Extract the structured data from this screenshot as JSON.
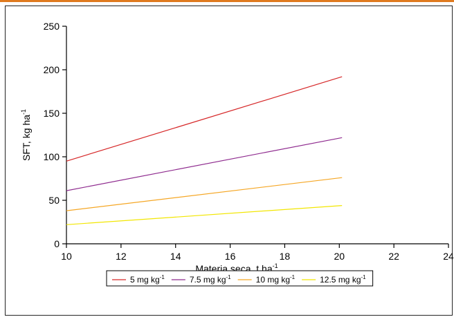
{
  "chart_data": {
    "type": "line",
    "title": "",
    "xlabel": "Materia seca, t ha",
    "xlabel_sup": "-1",
    "ylabel": "SFT, kg ha",
    "ylabel_sup": "-1",
    "xlim": [
      10,
      24
    ],
    "ylim": [
      0,
      250
    ],
    "xticks": [
      10,
      12,
      14,
      16,
      18,
      20,
      22,
      24
    ],
    "yticks": [
      0,
      50,
      100,
      150,
      200,
      250
    ],
    "grid": false,
    "legend_position": "bottom",
    "series": [
      {
        "name": "5 mg kg",
        "name_sup": "-1",
        "color": "#d62728",
        "x": [
          10,
          20.1
        ],
        "y": [
          95,
          192
        ]
      },
      {
        "name": "7.5 mg kg",
        "name_sup": "-1",
        "color": "#8e2a8e",
        "x": [
          10,
          20.1
        ],
        "y": [
          61,
          122
        ]
      },
      {
        "name": "10 mg kg",
        "name_sup": "-1",
        "color": "#f5a623",
        "x": [
          10,
          20.1
        ],
        "y": [
          38,
          76
        ]
      },
      {
        "name": "12.5 mg kg",
        "name_sup": "-1",
        "color": "#f2e600",
        "x": [
          10,
          20.1
        ],
        "y": [
          22,
          44
        ]
      }
    ]
  }
}
